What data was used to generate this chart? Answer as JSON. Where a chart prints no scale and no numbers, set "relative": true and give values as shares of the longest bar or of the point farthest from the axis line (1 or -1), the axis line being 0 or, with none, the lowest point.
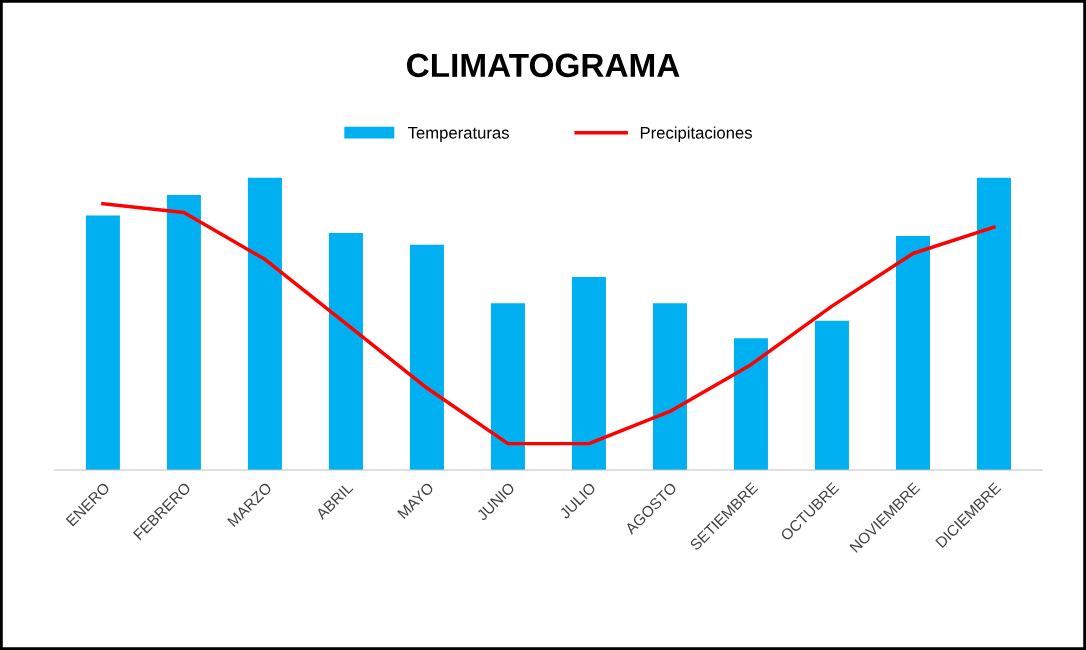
{
  "chart_data": {
    "type": "bar",
    "title": "CLIMATOGRAMA",
    "relative": true,
    "legend": "top",
    "grid": false,
    "categories": [
      "ENERO",
      "FEBRERO",
      "MARZO",
      "ABRIL",
      "MAYO",
      "JUNIO",
      "JULIO",
      "AGOSTO",
      "SETIEMBRE",
      "OCTUBRE",
      "NOVIEMBRE",
      "DICIEMBRE"
    ],
    "series": [
      {
        "name": "Temperaturas",
        "color": "#00b0f0",
        "values": [
          0.87,
          0.94,
          1,
          0.81,
          0.77,
          0.57,
          0.66,
          0.57,
          0.45,
          0.51,
          0.8,
          1
        ]
      },
      {
        "name": "Precipitaciones",
        "type": "line",
        "color": "#ff0000",
        "values": [
          0.91,
          0.88,
          0.72,
          0.5,
          0.28,
          0.09,
          0.09,
          0.2,
          0.36,
          0.56,
          0.74,
          0.83
        ]
      }
    ]
  }
}
